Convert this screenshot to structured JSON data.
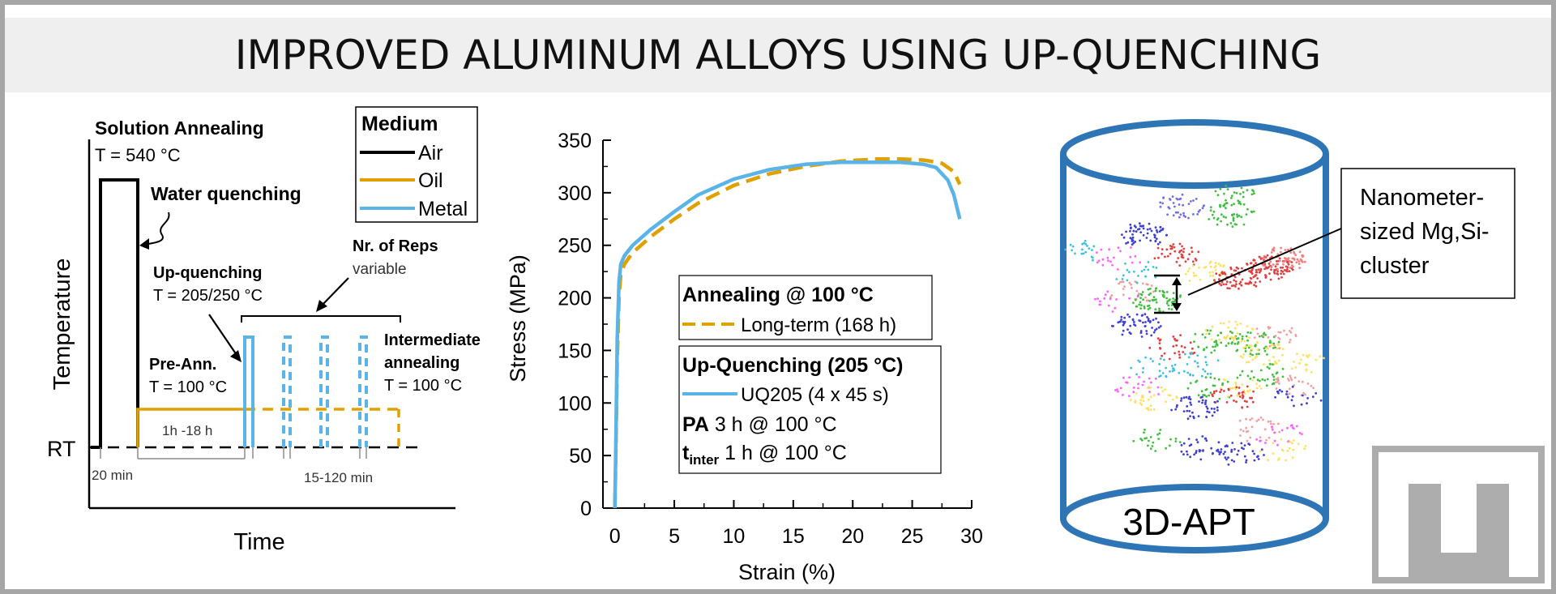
{
  "title": "IMPROVED ALUMINUM ALLOYS USING UP-QUENCHING",
  "colors": {
    "air": "#000000",
    "oil": "#e0a000",
    "metal": "#5ab4e8",
    "cylinder": "#2e75b6",
    "logo": "#aeadad"
  },
  "schematic": {
    "y_axis_label": "Temperature",
    "x_axis_label": "Time",
    "rt_label": "RT",
    "solution_annealing_title": "Solution Annealing",
    "solution_annealing_temp": "T = 540 °C",
    "water_quenching": "Water quenching",
    "up_quenching_title": "Up-quenching",
    "up_quenching_temp": "T = 205/250 °C",
    "pre_ann_title": "Pre-Ann.",
    "pre_ann_temp": "T = 100 °C",
    "pre_ann_duration": "1h -18 h",
    "reps_title": "Nr. of Reps",
    "reps_sub": "variable",
    "intermediate_line1": "Intermediate",
    "intermediate_line2": "annealing",
    "intermediate_temp": "T = 100 °C",
    "time_20min": "20 min",
    "time_15_120": "15-120 min",
    "legend_title": "Medium",
    "legend_items": [
      "Air",
      "Oil",
      "Metal"
    ]
  },
  "chart_data": {
    "type": "line",
    "xlabel": "Strain (%)",
    "ylabel": "Stress (MPa)",
    "xlim": [
      -1,
      30
    ],
    "ylim": [
      0,
      350
    ],
    "xticks": [
      0,
      5,
      10,
      15,
      20,
      25,
      30
    ],
    "yticks": [
      0,
      50,
      100,
      150,
      200,
      250,
      300,
      350
    ],
    "series": [
      {
        "name": "Long-term (168 h)",
        "style": "dashed",
        "color": "#e0a000",
        "x": [
          0,
          0.1,
          0.2,
          0.35,
          0.5,
          0.8,
          1.5,
          3,
          5,
          7,
          10,
          13,
          16,
          19,
          22,
          24,
          26,
          27.5,
          28.5,
          29
        ],
        "y": [
          0,
          60,
          140,
          200,
          222,
          232,
          243,
          258,
          275,
          290,
          307,
          318,
          325,
          330,
          332,
          332,
          331,
          328,
          320,
          308
        ]
      },
      {
        "name": "UQ205 (4 x 45 s)",
        "style": "solid",
        "color": "#5ab4e8",
        "x": [
          0,
          0.1,
          0.2,
          0.35,
          0.5,
          0.8,
          1.5,
          3,
          5,
          7,
          10,
          13,
          16,
          19,
          22,
          24,
          26,
          27,
          28,
          28.5,
          29
        ],
        "y": [
          0,
          70,
          160,
          215,
          232,
          240,
          250,
          265,
          282,
          298,
          313,
          322,
          327,
          329,
          329,
          329,
          327,
          324,
          312,
          298,
          275
        ]
      }
    ],
    "legend": {
      "group1_title": "Annealing @ 100 °C",
      "group2_title": "Up-Quenching (205 °C)",
      "pa_label": "PA",
      "pa_value": " 3 h @ 100 °C",
      "tinter_label": "t",
      "tinter_sub": "inter",
      "tinter_value": " 1 h @ 100 °C"
    }
  },
  "apt": {
    "label": "3D-APT",
    "callout_line1": "Nanometer-",
    "callout_line2": "sized Mg,Si-",
    "callout_line3": "cluster"
  }
}
